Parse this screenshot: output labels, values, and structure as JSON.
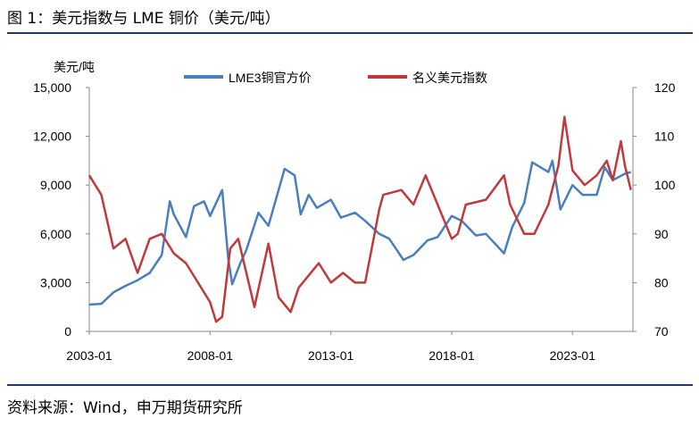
{
  "header": {
    "title": "图 1：美元指数与 LME 铜价（美元/吨）"
  },
  "footer": {
    "source": "资料来源：Wind，申万期货研究所"
  },
  "chart_data": {
    "type": "line",
    "ylabel_left": "美元/吨",
    "x_ticks": [
      "2003-01",
      "2008-01",
      "2013-01",
      "2018-01",
      "2023-01"
    ],
    "y_left": {
      "lim": [
        0,
        15000
      ],
      "ticks": [
        "0",
        "3,000",
        "6,000",
        "9,000",
        "12,000",
        "15,000"
      ]
    },
    "y_right": {
      "lim": [
        70,
        120
      ],
      "ticks": [
        "70",
        "80",
        "90",
        "100",
        "110",
        "120"
      ]
    },
    "legend_position": "top",
    "series": [
      {
        "name": "LME3铜官方价",
        "axis": "left",
        "color": "#4a7ebf",
        "x": [
          "2003-01",
          "2003-07",
          "2004-01",
          "2004-07",
          "2005-01",
          "2005-07",
          "2006-01",
          "2006-05",
          "2006-07",
          "2007-01",
          "2007-05",
          "2007-10",
          "2008-01",
          "2008-07",
          "2008-10",
          "2008-12",
          "2009-04",
          "2009-07",
          "2010-01",
          "2010-06",
          "2011-02",
          "2011-07",
          "2011-10",
          "2012-02",
          "2012-06",
          "2013-01",
          "2013-06",
          "2014-01",
          "2014-06",
          "2015-01",
          "2015-06",
          "2016-01",
          "2016-06",
          "2017-01",
          "2017-06",
          "2018-01",
          "2018-06",
          "2019-01",
          "2019-06",
          "2020-03",
          "2020-07",
          "2021-01",
          "2021-05",
          "2022-01",
          "2022-03",
          "2022-07",
          "2023-01",
          "2023-06",
          "2024-01",
          "2024-05",
          "2024-09",
          "2025-03",
          "2025-06"
        ],
        "values": [
          1650,
          1700,
          2400,
          2800,
          3150,
          3600,
          4700,
          8000,
          7200,
          5800,
          7700,
          8000,
          7100,
          8700,
          4500,
          2900,
          4200,
          5000,
          7300,
          6500,
          10000,
          9600,
          7200,
          8400,
          7600,
          8100,
          7000,
          7300,
          6800,
          6000,
          5700,
          4400,
          4700,
          5600,
          5800,
          7100,
          6800,
          5900,
          6000,
          4800,
          6400,
          7900,
          10400,
          9800,
          10500,
          7500,
          9000,
          8400,
          8400,
          10100,
          9300,
          9700,
          9800
        ]
      },
      {
        "name": "名义美元指数",
        "axis": "right",
        "color": "#c0393b",
        "x": [
          "2003-01",
          "2003-07",
          "2004-01",
          "2004-07",
          "2005-01",
          "2005-07",
          "2006-01",
          "2006-07",
          "2007-01",
          "2007-07",
          "2008-01",
          "2008-04",
          "2008-07",
          "2008-11",
          "2009-03",
          "2009-11",
          "2010-06",
          "2010-11",
          "2011-05",
          "2011-09",
          "2012-07",
          "2013-01",
          "2013-07",
          "2014-01",
          "2014-06",
          "2015-01",
          "2015-03",
          "2015-12",
          "2016-06",
          "2016-12",
          "2017-06",
          "2018-01",
          "2018-04",
          "2018-08",
          "2019-06",
          "2020-03",
          "2020-06",
          "2021-01",
          "2021-06",
          "2022-01",
          "2022-06",
          "2022-09",
          "2023-01",
          "2023-07",
          "2024-01",
          "2024-06",
          "2024-09",
          "2025-01",
          "2025-03",
          "2025-06"
        ],
        "values": [
          102,
          98,
          87,
          89,
          82,
          89,
          90,
          86,
          84,
          80,
          76,
          72,
          73,
          87,
          89,
          75,
          88,
          77,
          74,
          79,
          84,
          80,
          82,
          80,
          80,
          95,
          98,
          99,
          96,
          102,
          96,
          89,
          90,
          96,
          97,
          102,
          96,
          90,
          90,
          96,
          104,
          114,
          103,
          100,
          102,
          105,
          101,
          109,
          104,
          99
        ]
      }
    ]
  }
}
